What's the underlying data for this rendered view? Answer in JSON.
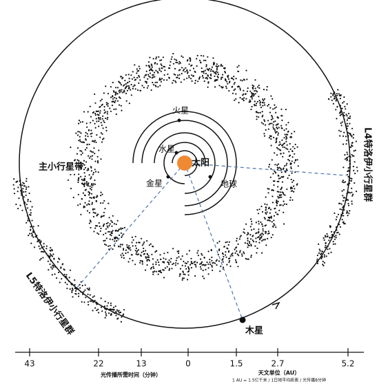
{
  "labels": {
    "belt": "主小行星带",
    "mars": "火星",
    "mercury": "水星",
    "sun": "太阳",
    "venus": "金星",
    "earth": "地球",
    "jupiter": "木星",
    "l4": "L4特洛伊小行星群",
    "l5": "L5特洛伊小行星群"
  },
  "scale": {
    "ticks": [
      "43",
      "22",
      "13",
      "0",
      "1.5",
      "2.7",
      "5.2"
    ],
    "left_caption": "光传播所需时间（分钟）",
    "right_caption": "天文单位（AU）",
    "note": "1 AU = 1.5亿千米 / 1日地平均距离 / 光传播8分钟"
  }
}
